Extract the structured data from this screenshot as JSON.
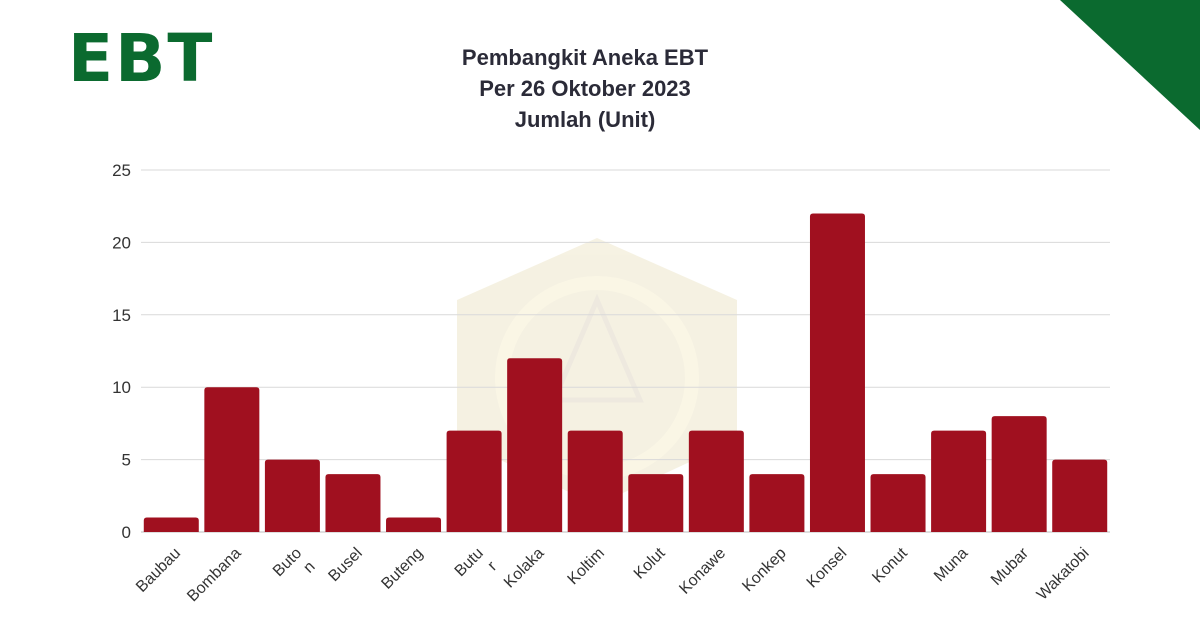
{
  "logo": {
    "text": "EBT",
    "color": "#0b6a2f"
  },
  "corner_color": "#0b6a2f",
  "chart_data": {
    "type": "bar",
    "title_lines": [
      "Pembangkit Aneka EBT",
      "Per 26 Oktober 2023",
      "Jumlah (Unit)"
    ],
    "categories": [
      {
        "label": "Baubau",
        "lines": [
          "Baubau"
        ]
      },
      {
        "label": "Bombana",
        "lines": [
          "Bombana"
        ]
      },
      {
        "label": "Buton",
        "lines": [
          "Buto",
          "n"
        ]
      },
      {
        "label": "Busel",
        "lines": [
          "Busel"
        ]
      },
      {
        "label": "Buteng",
        "lines": [
          "Buteng"
        ]
      },
      {
        "label": "Butur",
        "lines": [
          "Butu",
          "r"
        ]
      },
      {
        "label": "Kolaka",
        "lines": [
          "Kolaka"
        ]
      },
      {
        "label": "Koltim",
        "lines": [
          "Koltim"
        ]
      },
      {
        "label": "Kolut",
        "lines": [
          "Kolut"
        ]
      },
      {
        "label": "Konawe",
        "lines": [
          "Konawe"
        ]
      },
      {
        "label": "Konkep",
        "lines": [
          "Konkep"
        ]
      },
      {
        "label": "Konsel",
        "lines": [
          "Konsel"
        ]
      },
      {
        "label": "Konut",
        "lines": [
          "Konut"
        ]
      },
      {
        "label": "Muna",
        "lines": [
          "Muna"
        ]
      },
      {
        "label": "Mubar",
        "lines": [
          "Mubar"
        ]
      },
      {
        "label": "Wakatobi",
        "lines": [
          "Wakatobi"
        ]
      }
    ],
    "values": [
      1,
      10,
      5,
      4,
      1,
      7,
      12,
      7,
      4,
      7,
      4,
      22,
      4,
      7,
      8,
      5
    ],
    "ylim": [
      0,
      25
    ],
    "yticks": [
      0,
      5,
      10,
      15,
      20,
      25
    ],
    "grid": true,
    "legend": "none",
    "bar_color": "#a0101f"
  }
}
